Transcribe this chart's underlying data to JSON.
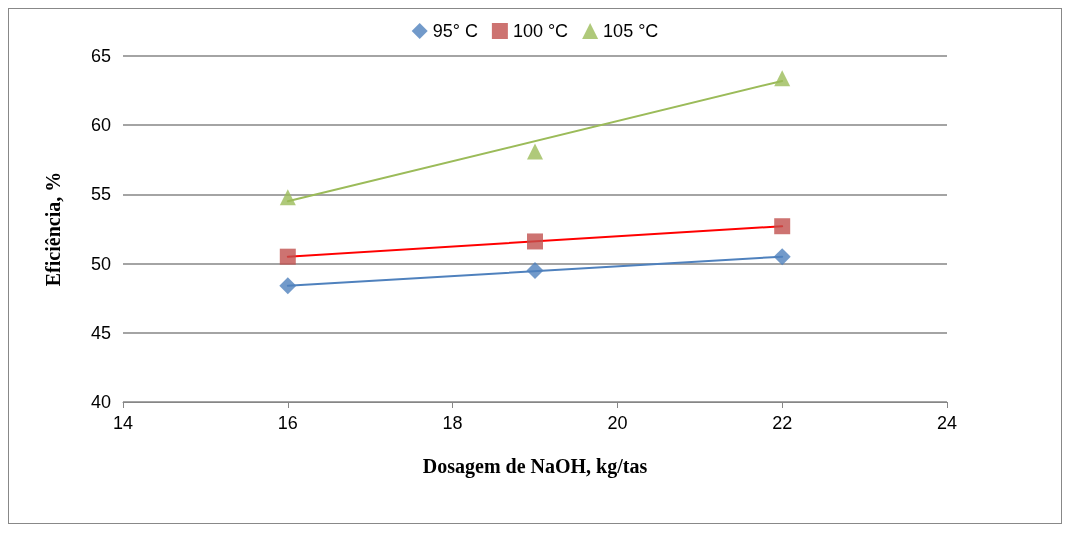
{
  "chart_data": {
    "type": "scatter",
    "xlabel": "Dosagem de NaOH, kg/tas",
    "ylabel": "Eficiência, %",
    "xlim": [
      14,
      24
    ],
    "xticks": [
      14,
      16,
      18,
      20,
      22,
      24
    ],
    "ylim": [
      40,
      65
    ],
    "yticks": [
      40,
      45,
      50,
      55,
      60,
      65
    ],
    "grid": "y",
    "legend": "top",
    "series": [
      {
        "name": "95° C",
        "color": "#4f81bd",
        "marker": "diamond",
        "x": [
          16,
          19,
          22
        ],
        "values": [
          48.4,
          49.5,
          50.5
        ]
      },
      {
        "name": "100 °C",
        "color": "#c0504d",
        "marker": "square",
        "x": [
          16,
          19,
          22
        ],
        "values": [
          50.5,
          51.6,
          52.7
        ]
      },
      {
        "name": "105 °C",
        "color": "#9bbb59",
        "marker": "triangle",
        "x": [
          16,
          19,
          22
        ],
        "values": [
          54.8,
          58.1,
          63.4
        ]
      },
      {
        "type": "line",
        "color": "#4f81bd",
        "marker": "none",
        "x": [
          16,
          22
        ],
        "values": [
          48.4,
          50.5
        ]
      },
      {
        "type": "line",
        "color": "#ff0000",
        "marker": "none",
        "x": [
          16,
          22
        ],
        "values": [
          50.5,
          52.7
        ]
      },
      {
        "type": "line",
        "color": "#9bbb59",
        "marker": "none",
        "x": [
          16,
          22
        ],
        "values": [
          54.5,
          63.2
        ]
      }
    ]
  }
}
